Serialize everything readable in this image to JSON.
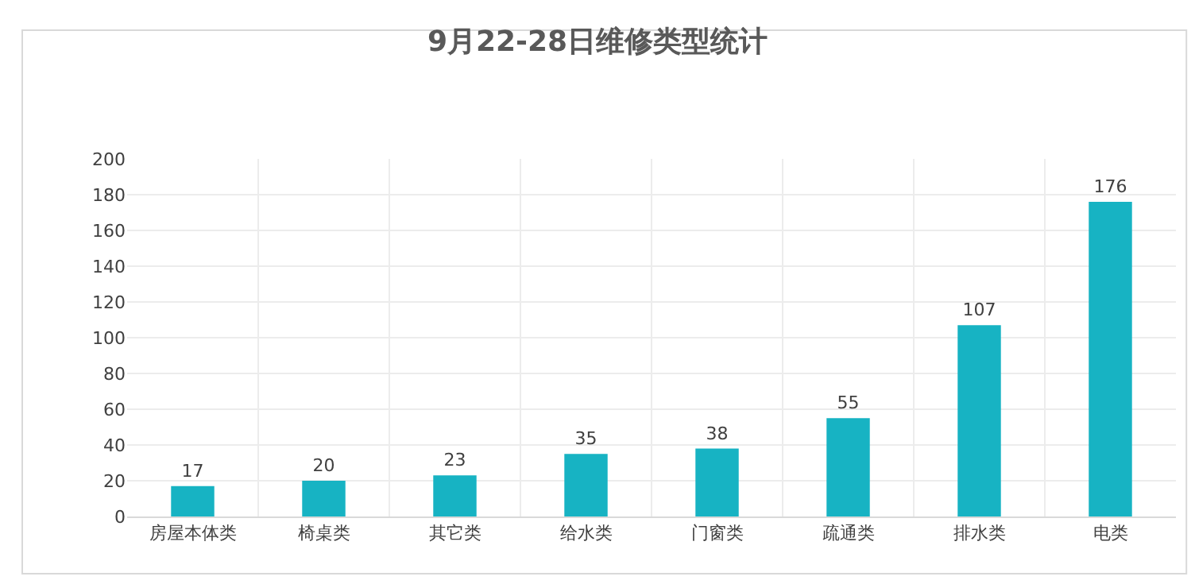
{
  "chart_data": {
    "type": "bar",
    "title": "9月22-28日维修类型统计",
    "categories": [
      "房屋本体类",
      "椅桌类",
      "其它类",
      "给水类",
      "门窗类",
      "疏通类",
      "排水类",
      "电类"
    ],
    "values": [
      17,
      20,
      23,
      35,
      38,
      55,
      107,
      176
    ],
    "color": "#17b3c3",
    "ylim": [
      0,
      200
    ],
    "yticks": [
      0,
      20,
      40,
      60,
      80,
      100,
      120,
      140,
      160,
      180,
      200
    ],
    "grid": true,
    "data_labels": true
  }
}
